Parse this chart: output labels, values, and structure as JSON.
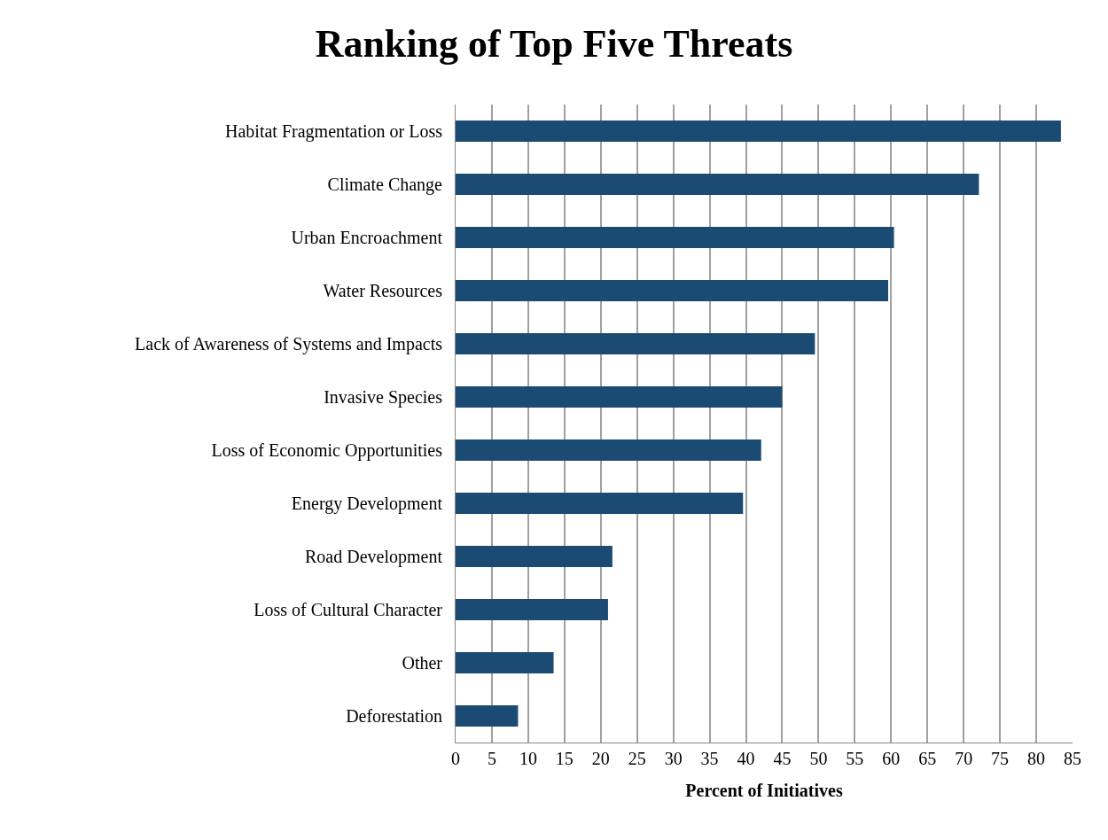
{
  "chart_data": {
    "type": "bar",
    "orientation": "horizontal",
    "title": "Ranking of Top Five Threats",
    "xlabel": "Percent of Initiatives",
    "categories": [
      "Habitat Fragmentation or Loss",
      "Climate Change",
      "Urban Encroachment",
      "Water Resources",
      "Lack of Awareness of Systems and Impacts",
      "Invasive Species",
      "Loss of Economic Opportunities",
      "Energy Development",
      "Road Development",
      "Loss of Cultural Character",
      "Other",
      "Deforestation"
    ],
    "values": [
      83.4,
      72.1,
      60.4,
      59.6,
      49.5,
      45.0,
      42.1,
      39.6,
      21.6,
      21.0,
      13.5,
      8.6
    ],
    "color": "#1b4a73",
    "xlim": [
      0,
      85
    ],
    "xticks": [
      0,
      5,
      10,
      15,
      20,
      25,
      30,
      35,
      40,
      45,
      50,
      55,
      60,
      65,
      70,
      75,
      80,
      85
    ],
    "grid": "x"
  }
}
